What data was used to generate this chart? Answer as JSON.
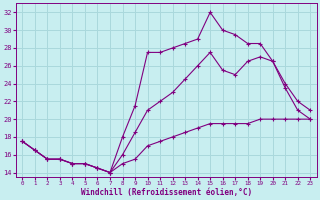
{
  "xlabel": "Windchill (Refroidissement éolien,°C)",
  "bg_color": "#c8eef0",
  "grid_color": "#aad8dc",
  "line_color": "#800080",
  "xlim_min": -0.5,
  "xlim_max": 23.5,
  "ylim_min": 13.5,
  "ylim_max": 33.0,
  "yticks": [
    14,
    16,
    18,
    20,
    22,
    24,
    26,
    28,
    30,
    32
  ],
  "xticks": [
    0,
    1,
    2,
    3,
    4,
    5,
    6,
    7,
    8,
    9,
    10,
    11,
    12,
    13,
    14,
    15,
    16,
    17,
    18,
    19,
    20,
    21,
    22,
    23
  ],
  "line1_x": [
    0,
    1,
    2,
    3,
    4,
    5,
    6,
    7,
    8,
    9,
    10,
    11,
    12,
    13,
    14,
    15,
    16,
    17,
    18,
    19,
    20,
    21,
    22,
    23
  ],
  "line1_y": [
    17.5,
    16.5,
    15.5,
    15.5,
    15.0,
    15.0,
    14.5,
    14.0,
    18.0,
    21.5,
    27.5,
    27.5,
    28.0,
    28.5,
    29.0,
    32.0,
    30.0,
    29.5,
    28.5,
    28.5,
    26.5,
    23.5,
    21.0,
    20.0
  ],
  "line2_x": [
    0,
    1,
    2,
    3,
    4,
    5,
    6,
    7,
    8,
    9,
    10,
    11,
    12,
    13,
    14,
    15,
    16,
    17,
    18,
    19,
    20,
    21,
    22,
    23
  ],
  "line2_y": [
    17.5,
    16.5,
    15.5,
    15.5,
    15.0,
    15.0,
    14.5,
    14.0,
    16.0,
    18.5,
    21.0,
    22.0,
    23.0,
    24.5,
    26.0,
    27.5,
    25.5,
    25.0,
    26.5,
    27.0,
    26.5,
    24.0,
    22.0,
    21.0
  ],
  "line3_x": [
    0,
    1,
    2,
    3,
    4,
    5,
    6,
    7,
    8,
    9,
    10,
    11,
    12,
    13,
    14,
    15,
    16,
    17,
    18,
    19,
    20,
    21,
    22,
    23
  ],
  "line3_y": [
    17.5,
    16.5,
    15.5,
    15.5,
    15.0,
    15.0,
    14.5,
    14.0,
    15.0,
    15.5,
    17.0,
    17.5,
    18.0,
    18.5,
    19.0,
    19.5,
    19.5,
    19.5,
    19.5,
    20.0,
    20.0,
    20.0,
    20.0,
    20.0
  ]
}
